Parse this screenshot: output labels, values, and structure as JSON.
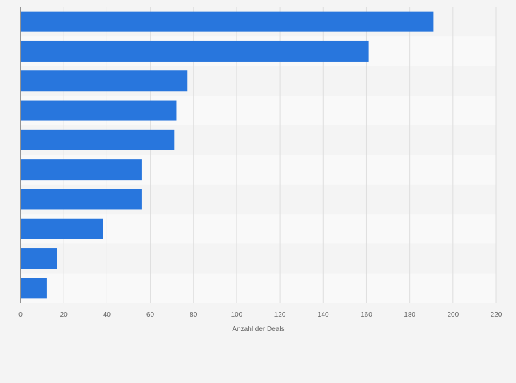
{
  "chart_data": {
    "type": "bar",
    "orientation": "horizontal",
    "categories": [
      "",
      "",
      "",
      "",
      "",
      "",
      "",
      "",
      "",
      ""
    ],
    "values": [
      191,
      161,
      77,
      72,
      71,
      56,
      56,
      38,
      17,
      12
    ],
    "xlabel": "Anzahl der Deals",
    "ylabel": "",
    "xlim": [
      0,
      220
    ],
    "xticks": [
      0,
      20,
      40,
      60,
      80,
      100,
      120,
      140,
      160,
      180,
      200,
      220
    ],
    "grid": true,
    "legend": "none",
    "colors": {
      "bar": "#2876dd",
      "band_light": "#f9f9f9",
      "band_dark": "#f4f4f4",
      "grid": "#dedede",
      "axis": "#333333",
      "text": "#666666"
    }
  }
}
